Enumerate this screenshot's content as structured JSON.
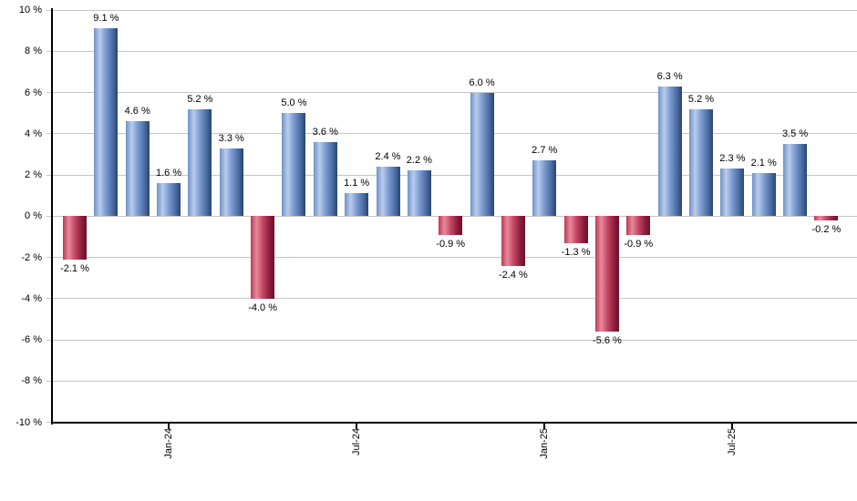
{
  "chart_data": {
    "type": "bar",
    "title": "",
    "xlabel": "",
    "ylabel": "",
    "ylim": [
      -10,
      10
    ],
    "grid": true,
    "values": [
      -2.1,
      9.1,
      4.6,
      1.6,
      5.2,
      3.3,
      -4.0,
      5.0,
      3.6,
      1.1,
      2.4,
      2.2,
      -0.9,
      6.0,
      -2.4,
      2.7,
      -1.3,
      -5.6,
      -0.9,
      6.3,
      5.2,
      2.3,
      2.1,
      3.5,
      -0.2
    ],
    "value_labels": [
      "-2.1 %",
      "9.1 %",
      "4.6 %",
      "1.6 %",
      "5.2 %",
      "3.3 %",
      "-4.0 %",
      "5.0 %",
      "3.6 %",
      "1.1 %",
      "2.4 %",
      "2.2 %",
      "-0.9 %",
      "6.0 %",
      "-2.4 %",
      "2.7 %",
      "-1.3 %",
      "-5.6 %",
      "-0.9 %",
      "6.3 %",
      "5.2 %",
      "2.3 %",
      "2.1 %",
      "3.5 %",
      "-0.2 %"
    ],
    "y_ticks": {
      "values": [
        10,
        8,
        6,
        4,
        2,
        0,
        -2,
        -4,
        -6,
        -8,
        -10
      ],
      "labels": [
        "10 %",
        "8 %",
        "6 %",
        "4 %",
        "2 %",
        "0 %",
        "-2 %",
        "-4 %",
        "-6 %",
        "-8 %",
        "-10 %"
      ]
    },
    "x_ticks": [
      {
        "label": "Jan-24",
        "bar_index": 3
      },
      {
        "label": "Jul-24",
        "bar_index": 9
      },
      {
        "label": "Jan-25",
        "bar_index": 15
      },
      {
        "label": "Jul-25",
        "bar_index": 21
      }
    ],
    "colors": {
      "positive_gradient": [
        "#6f91c7",
        "#b9cdec",
        "#7b9bd1",
        "#4a6ba2",
        "#27456f"
      ],
      "negative_gradient": [
        "#bc3a57",
        "#e9899b",
        "#c44a66",
        "#8c1d3c",
        "#6d0f2a"
      ],
      "gridline": "#c6c6c6",
      "axis": "#000000",
      "label": "#000000",
      "background": "#ffffff"
    }
  }
}
